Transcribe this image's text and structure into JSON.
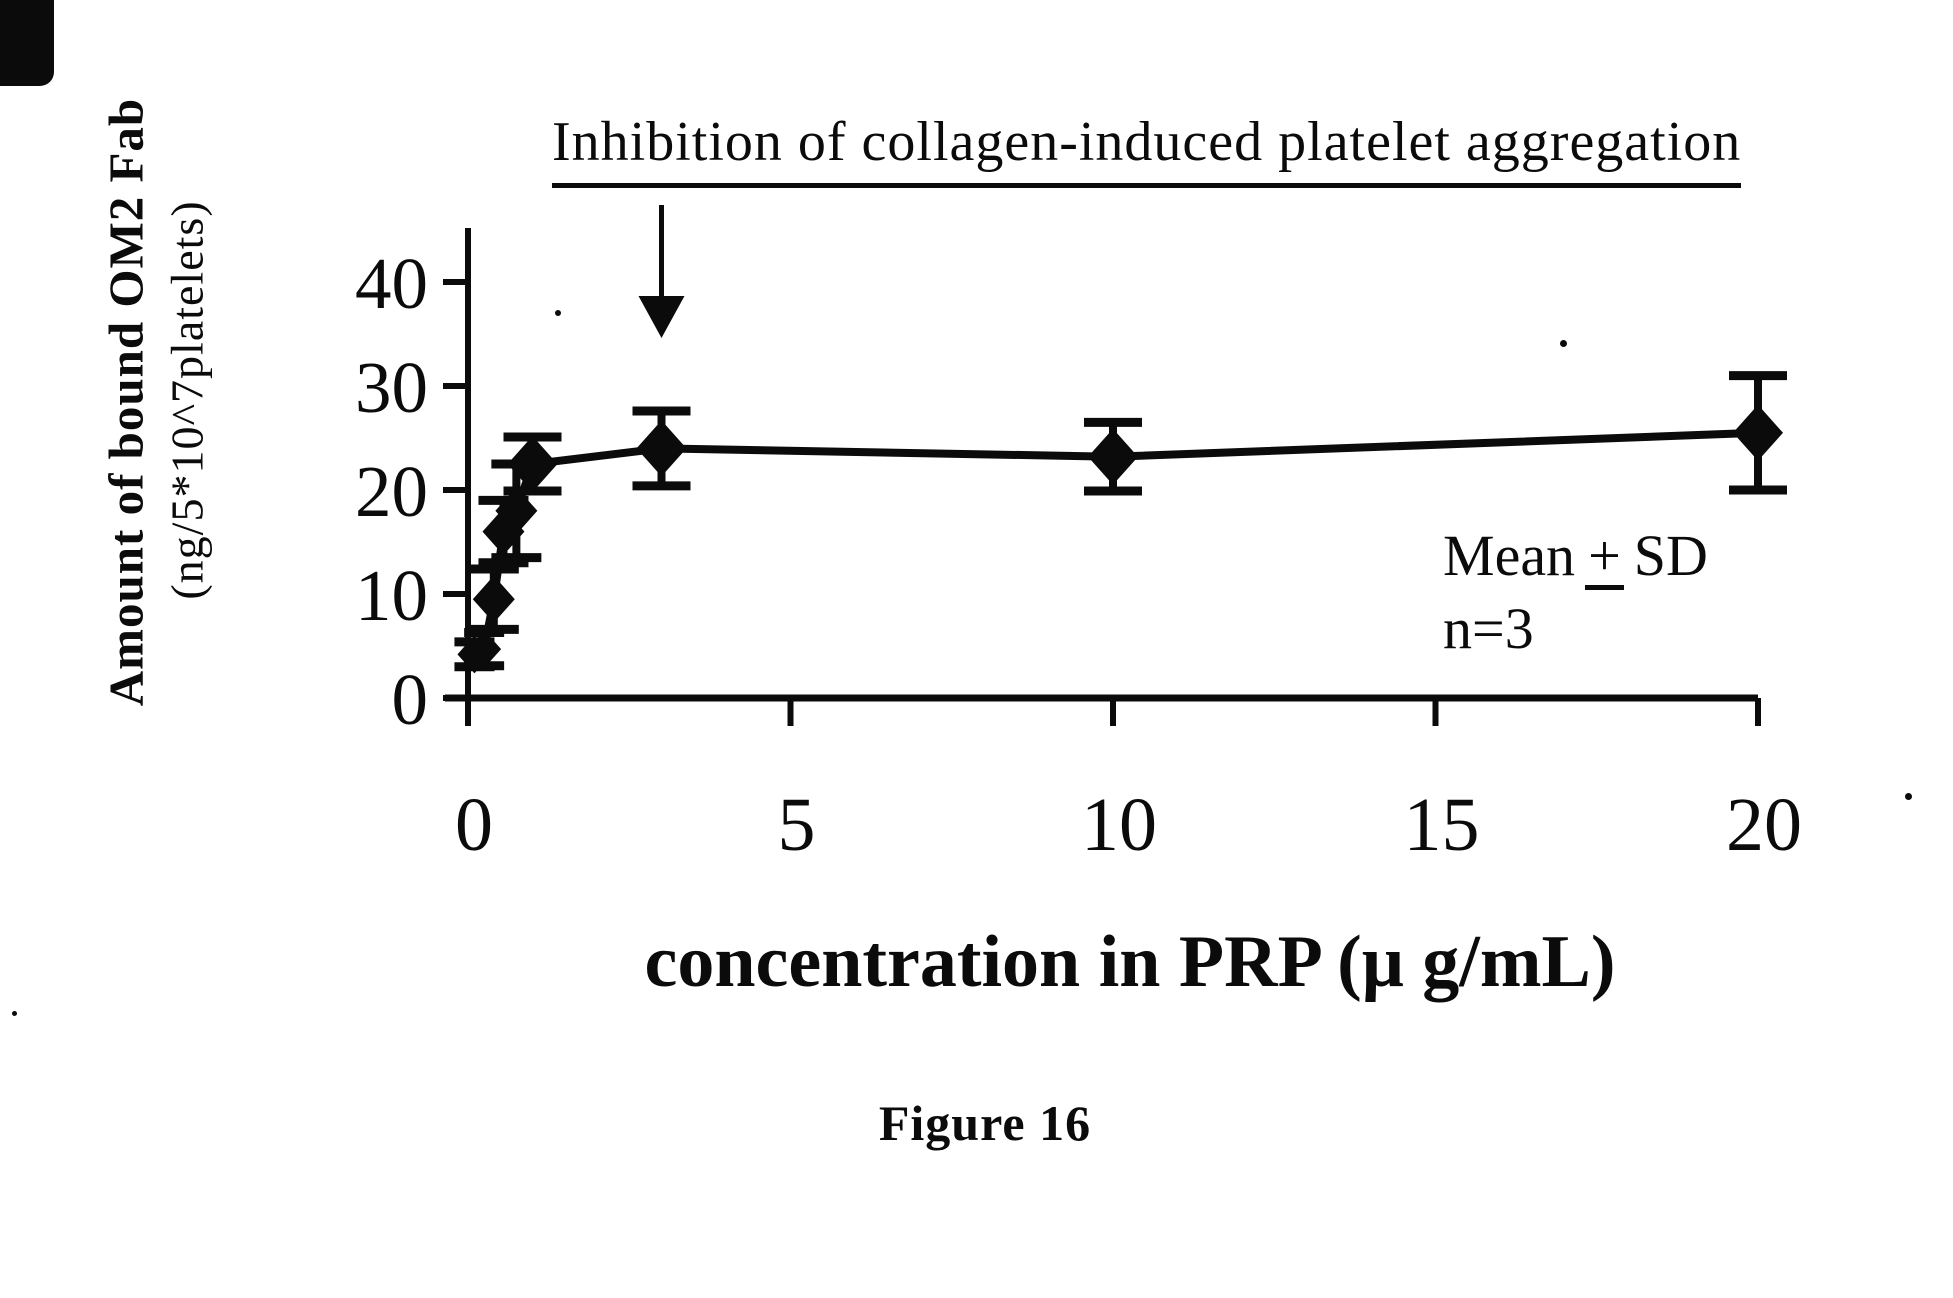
{
  "figure": {
    "annotation_title": "Inhibition of collagen-induced platelet aggregation",
    "caption": "Figure 16",
    "stats_note": {
      "line1_pre": "Mean",
      "line1_pm": "+",
      "line1_post": "SD",
      "line2": "n=3"
    }
  },
  "chart_data": {
    "type": "scatter",
    "subtype": "line-with-error-bars",
    "title": "Inhibition of collagen-induced platelet aggregation",
    "xlabel": "concentration in PRP (μ g/mL)",
    "ylabel_line1": "Amount of bound OM2 Fab",
    "ylabel_line2": "(ng/5*10^7platelets)",
    "xlim": [
      0,
      20
    ],
    "ylim": [
      0,
      40
    ],
    "x_ticks": [
      0,
      5,
      10,
      15,
      20
    ],
    "y_ticks": [
      0,
      10,
      20,
      30,
      40
    ],
    "grid": false,
    "legend_position": "none",
    "marker": "filled-diamond",
    "error_bars": "mean-plus-minus-sd",
    "n": 3,
    "annotation_arrow_points_to_x": 3,
    "points": [
      {
        "x": 0.1,
        "y": 4.2,
        "sd": 1.2
      },
      {
        "x": 0.25,
        "y": 4.7,
        "sd": 1.6
      },
      {
        "x": 0.4,
        "y": 9.5,
        "sd": 2.9
      },
      {
        "x": 0.55,
        "y": 16.0,
        "sd": 3.0
      },
      {
        "x": 0.75,
        "y": 18.0,
        "sd": 4.5
      },
      {
        "x": 1.0,
        "y": 22.5,
        "sd": 2.6
      },
      {
        "x": 3.0,
        "y": 24.0,
        "sd": 3.6
      },
      {
        "x": 10.0,
        "y": 23.2,
        "sd": 3.3
      },
      {
        "x": 20.0,
        "y": 25.5,
        "sd": 5.5
      }
    ]
  }
}
